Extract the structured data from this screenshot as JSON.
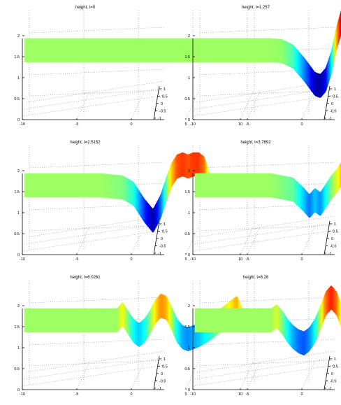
{
  "chart_data": [
    {
      "type": "surface",
      "title": "height; t=0",
      "x_ticks": [
        "-10",
        "-5",
        "0",
        "5",
        "10"
      ],
      "y_ticks": [
        "1",
        "0.5",
        "0",
        "-0.5",
        "-1"
      ],
      "z_ticks": [
        "0",
        "0.5",
        "1",
        "1.5",
        "2"
      ],
      "xlim": [
        -10,
        12.5
      ],
      "ylim": [
        -1,
        1
      ],
      "zlim": [
        0,
        2.5
      ],
      "grid": true,
      "profile": {
        "x": [
          -10,
          12.5
        ],
        "z": [
          1.8,
          1.8
        ]
      }
    },
    {
      "type": "surface",
      "title": "height; t=1.257",
      "x_ticks": [
        "-10",
        "-5",
        "0",
        "5",
        "10"
      ],
      "y_ticks": [
        "1",
        "0.5",
        "0",
        "-0.5",
        "-1"
      ],
      "z_ticks": [
        "0",
        "0.5",
        "1",
        "1.5",
        "2"
      ],
      "xlim": [
        -10,
        12.5
      ],
      "ylim": [
        -1,
        1
      ],
      "zlim": [
        0,
        2.5
      ],
      "grid": true,
      "profile": {
        "x": [
          -10,
          -3,
          -2,
          -1,
          0,
          1,
          1.5,
          2,
          2.5,
          3,
          3.5,
          4,
          4.5,
          5,
          6,
          12.5
        ],
        "z": [
          1.8,
          1.8,
          1.78,
          1.65,
          1.35,
          1.0,
          0.95,
          1.1,
          1.5,
          2.1,
          2.55,
          2.6,
          2.2,
          1.8,
          1.8,
          1.8
        ]
      }
    },
    {
      "type": "surface",
      "title": "height; t=2.5152",
      "x_ticks": [
        "-10",
        "-5",
        "0",
        "5",
        "10"
      ],
      "y_ticks": [
        "1",
        "0.5",
        "0",
        "-0.5",
        "-1"
      ],
      "z_ticks": [
        "0",
        "0.5",
        "1",
        "1.5",
        "2"
      ],
      "xlim": [
        -10,
        12.5
      ],
      "ylim": [
        -1,
        1
      ],
      "zlim": [
        0,
        2.5
      ],
      "grid": true,
      "profile": {
        "x": [
          -10,
          -3,
          -1,
          0,
          1,
          1.8,
          2.5,
          3,
          3.5,
          4,
          4.5,
          5,
          5.5,
          6,
          6.5,
          7,
          7.5,
          12.5
        ],
        "z": [
          1.8,
          1.8,
          1.75,
          1.6,
          1.2,
          0.95,
          1.3,
          1.7,
          2.05,
          2.25,
          2.3,
          2.25,
          2.3,
          2.3,
          2.2,
          1.8,
          1.8,
          1.8
        ]
      }
    },
    {
      "type": "surface",
      "title": "height; t=3.7692",
      "x_ticks": [
        "-10",
        "-5",
        "0",
        "5",
        "10"
      ],
      "y_ticks": [
        "1",
        "0.5",
        "0",
        "-0.5",
        "-1"
      ],
      "z_ticks": [
        "0",
        "0.5",
        "1",
        "1.5",
        "2"
      ],
      "xlim": [
        -10,
        12.5
      ],
      "ylim": [
        -1,
        1
      ],
      "zlim": [
        0,
        2.5
      ],
      "grid": true,
      "profile": {
        "x": [
          -10,
          -3,
          -1,
          0,
          0.5,
          1,
          1.5,
          2,
          2.5,
          3,
          3.5,
          4,
          4.5,
          5,
          5.5,
          6,
          6.5,
          7,
          7.5,
          8,
          12.5
        ],
        "z": [
          1.8,
          1.8,
          1.7,
          1.45,
          1.3,
          1.45,
          1.35,
          1.55,
          1.75,
          1.9,
          2.1,
          2.2,
          2.15,
          2.0,
          1.9,
          1.85,
          1.9,
          2.0,
          2.1,
          1.8,
          1.8
        ]
      }
    },
    {
      "type": "surface",
      "title": "height; t=6.0261",
      "x_ticks": [
        "-10",
        "-5",
        "0",
        "5",
        "10"
      ],
      "y_ticks": [
        "1",
        "0.5",
        "0",
        "-0.5",
        "-1"
      ],
      "z_ticks": [
        "0",
        "0.5",
        "1",
        "1.5",
        "2"
      ],
      "xlim": [
        -10,
        12.5
      ],
      "ylim": [
        -1,
        1
      ],
      "zlim": [
        0,
        2.5
      ],
      "grid": true,
      "profile": {
        "x": [
          -10,
          -1.5,
          -1,
          -0.5,
          0,
          0.5,
          1,
          1.5,
          2,
          2.5,
          3,
          3.5,
          4,
          4.5,
          5,
          6,
          7,
          8,
          9,
          9.5,
          10,
          12.5
        ],
        "z": [
          1.8,
          1.8,
          1.95,
          1.75,
          1.55,
          1.45,
          1.55,
          1.75,
          2.0,
          2.15,
          2.1,
          1.85,
          1.55,
          1.4,
          1.35,
          1.45,
          1.6,
          1.8,
          2.0,
          2.1,
          1.8,
          1.8
        ]
      }
    },
    {
      "type": "surface",
      "title": "height; t=6.28",
      "x_ticks": [
        "-10",
        "-5",
        "0",
        "5",
        "10"
      ],
      "y_ticks": [
        "1",
        "0.5",
        "0",
        "-0.5",
        "-1"
      ],
      "z_ticks": [
        "0",
        "0.5",
        "1",
        "1.5",
        "2"
      ],
      "xlim": [
        -10,
        12.5
      ],
      "ylim": [
        -1,
        1
      ],
      "zlim": [
        0,
        2.5
      ],
      "grid": true,
      "profile": {
        "x": [
          -10,
          -3,
          -2.5,
          -2,
          -1.5,
          -1,
          -0.5,
          0,
          0.5,
          1,
          1.5,
          2,
          2.5,
          3,
          3.5,
          4,
          4.5,
          5,
          6,
          7,
          8,
          9,
          10,
          12.5
        ],
        "z": [
          1.8,
          1.8,
          1.9,
          1.75,
          1.55,
          1.4,
          1.3,
          1.25,
          1.35,
          1.55,
          1.85,
          2.2,
          2.35,
          2.2,
          1.85,
          1.55,
          1.4,
          1.35,
          1.45,
          1.6,
          1.8,
          2.0,
          1.9,
          1.8
        ]
      }
    }
  ]
}
